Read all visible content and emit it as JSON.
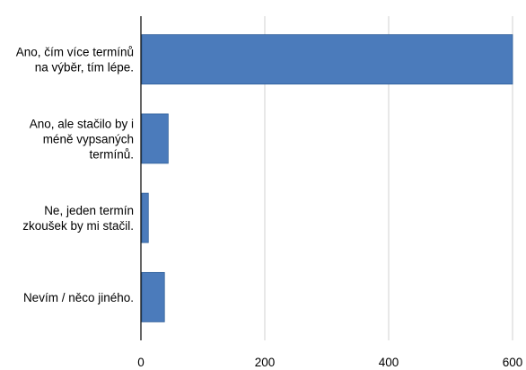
{
  "chart_data": {
    "type": "bar",
    "orientation": "horizontal",
    "categories": [
      [
        "Ano, čím více termínů",
        "na výběr, tím lépe."
      ],
      [
        "Ano, ale stačilo by i",
        "méně vypsaných",
        "termínů."
      ],
      [
        "Ne, jeden termín",
        "zkoušek by mi stačil."
      ],
      [
        "Nevím / něco jiného."
      ]
    ],
    "values": [
      600,
      44,
      12,
      38
    ],
    "xlim": [
      0,
      600
    ],
    "xticks": [
      0,
      200,
      400,
      600
    ],
    "grid": true,
    "bar_color": "#4b7bbb",
    "bar_edge_color": "#2f5f9a",
    "grid_color": "#d0d0d0",
    "axis_color": "#000000"
  }
}
